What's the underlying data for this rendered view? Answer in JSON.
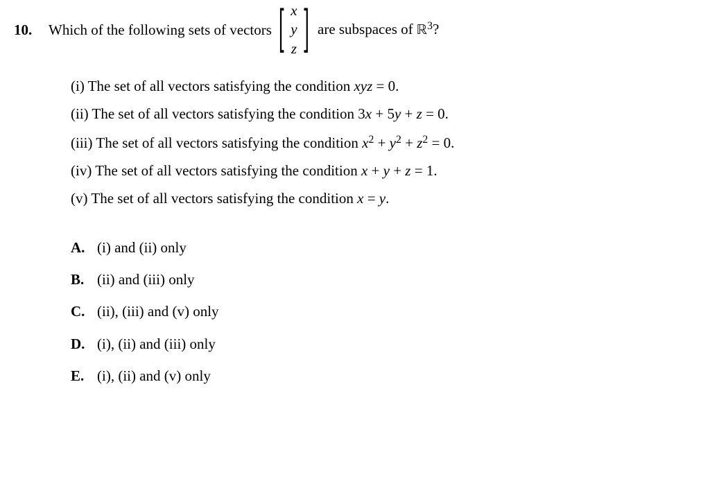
{
  "question": {
    "number": "10.",
    "lead_text": "Which of the following sets of vectors",
    "vector_entries": [
      "x",
      "y",
      "z"
    ],
    "trail_text_a": "are subspaces of ",
    "trail_space_sym": "ℝ",
    "trail_sup": "3",
    "trail_text_b": "?"
  },
  "conditions": [
    {
      "label": "(i)",
      "pre": "The set of all vectors satisfying the condition ",
      "math_html": "<span class='it'>xyz</span> = 0."
    },
    {
      "label": "(ii)",
      "pre": "The set of all vectors satisfying the condition ",
      "math_html": "3<span class='it'>x</span> + 5<span class='it'>y</span> + <span class='it'>z</span> = 0."
    },
    {
      "label": "(iii)",
      "pre": "The set of all vectors satisfying the condition ",
      "math_html": "<span class='it'>x</span><sup class='supn'>2</sup> + <span class='it'>y</span><sup class='supn'>2</sup> + <span class='it'>z</span><sup class='supn'>2</sup> = 0."
    },
    {
      "label": "(iv)",
      "pre": "The set of all vectors satisfying the condition ",
      "math_html": "<span class='it'>x</span> + <span class='it'>y</span> + <span class='it'>z</span> = 1."
    },
    {
      "label": "(v)",
      "pre": "The set of all vectors satisfying the condition ",
      "math_html": "<span class='it'>x</span> = <span class='it'>y</span>."
    }
  ],
  "choices": [
    {
      "label": "A.",
      "text": "(i) and (ii) only"
    },
    {
      "label": "B.",
      "text": "(ii) and (iii) only"
    },
    {
      "label": "C.",
      "text": "(ii), (iii) and (v) only"
    },
    {
      "label": "D.",
      "text": "(i), (ii) and (iii) only"
    },
    {
      "label": "E.",
      "text": "(i), (ii) and (v) only"
    }
  ]
}
